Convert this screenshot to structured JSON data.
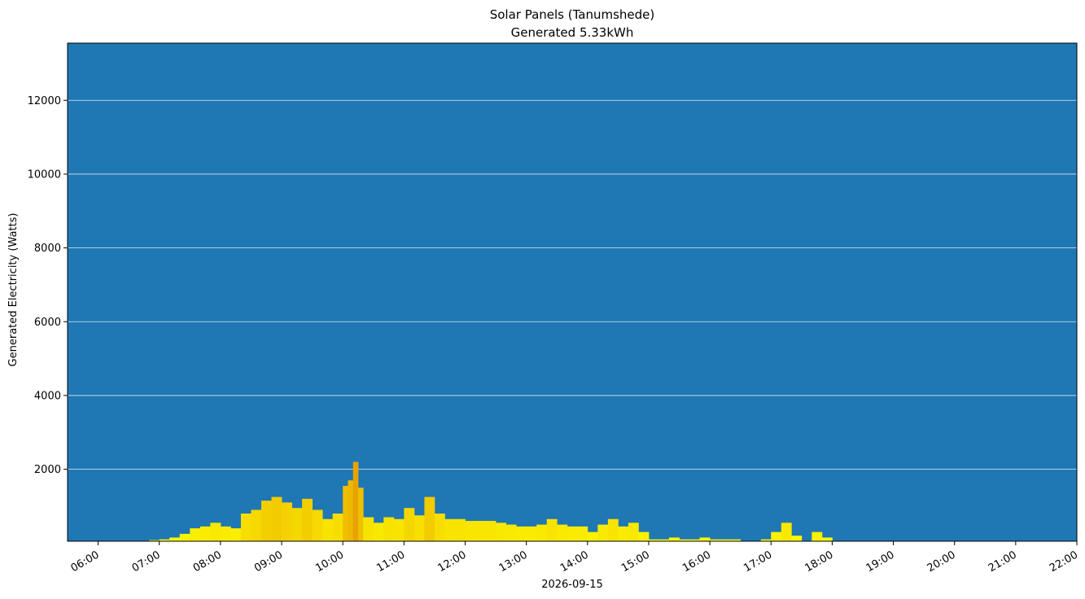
{
  "chart_data": {
    "type": "bar",
    "title": "Solar Panels (Tanumshede)",
    "subtitle": "Generated 5.33kWh",
    "xlabel": "2026-09-15",
    "ylabel": "Generated Electricity (Watts)",
    "xlim": [
      "05:30",
      "22:00"
    ],
    "ylim": [
      50,
      13550
    ],
    "grid": "horizontal",
    "colors": {
      "background": "#1f77b4",
      "bar_low": "#ffff00",
      "bar_high": "#e8a300",
      "grid": "#ffffff"
    },
    "x_ticks": [
      "06:00",
      "07:00",
      "08:00",
      "09:00",
      "10:00",
      "11:00",
      "12:00",
      "13:00",
      "14:00",
      "15:00",
      "16:00",
      "17:00",
      "18:00",
      "19:00",
      "20:00",
      "21:00",
      "22:00"
    ],
    "y_ticks": [
      2000,
      4000,
      6000,
      8000,
      10000,
      12000
    ],
    "series": [
      {
        "time": [
          "06:40",
          "06:50",
          "07:00",
          "07:10",
          "07:20",
          "07:30",
          "07:40",
          "07:50",
          "08:00",
          "08:10",
          "08:20",
          "08:30",
          "08:40",
          "08:50",
          "09:00",
          "09:10",
          "09:20",
          "09:30",
          "09:40",
          "09:50",
          "10:00",
          "10:05",
          "10:10",
          "10:15",
          "10:20",
          "10:30",
          "10:40",
          "10:50",
          "11:00",
          "11:10",
          "11:20",
          "11:30",
          "11:40",
          "11:50",
          "12:00",
          "12:10",
          "12:20",
          "12:30",
          "12:40",
          "12:50",
          "13:00",
          "13:10",
          "13:20",
          "13:30",
          "13:40",
          "13:50",
          "14:00",
          "14:10",
          "14:20",
          "14:30",
          "14:40",
          "14:50",
          "15:00",
          "15:10",
          "15:20",
          "15:30",
          "15:40",
          "15:50",
          "16:00",
          "16:10",
          "16:20",
          "16:30",
          "16:40",
          "16:50",
          "17:00",
          "17:10",
          "17:20",
          "17:30",
          "17:40",
          "17:50",
          "18:00",
          "18:20"
        ],
        "values": [
          50,
          80,
          100,
          150,
          250,
          400,
          450,
          550,
          450,
          400,
          800,
          900,
          1150,
          1250,
          1100,
          950,
          1200,
          900,
          650,
          800,
          1550,
          1700,
          2200,
          1500,
          700,
          550,
          700,
          650,
          950,
          750,
          1250,
          800,
          650,
          650,
          600,
          600,
          600,
          550,
          500,
          450,
          450,
          500,
          650,
          500,
          450,
          450,
          300,
          500,
          650,
          450,
          550,
          300,
          100,
          100,
          150,
          100,
          100,
          150,
          100,
          100,
          100,
          50,
          50,
          100,
          300,
          550,
          200,
          50,
          300,
          150,
          50,
          50
        ]
      }
    ]
  }
}
